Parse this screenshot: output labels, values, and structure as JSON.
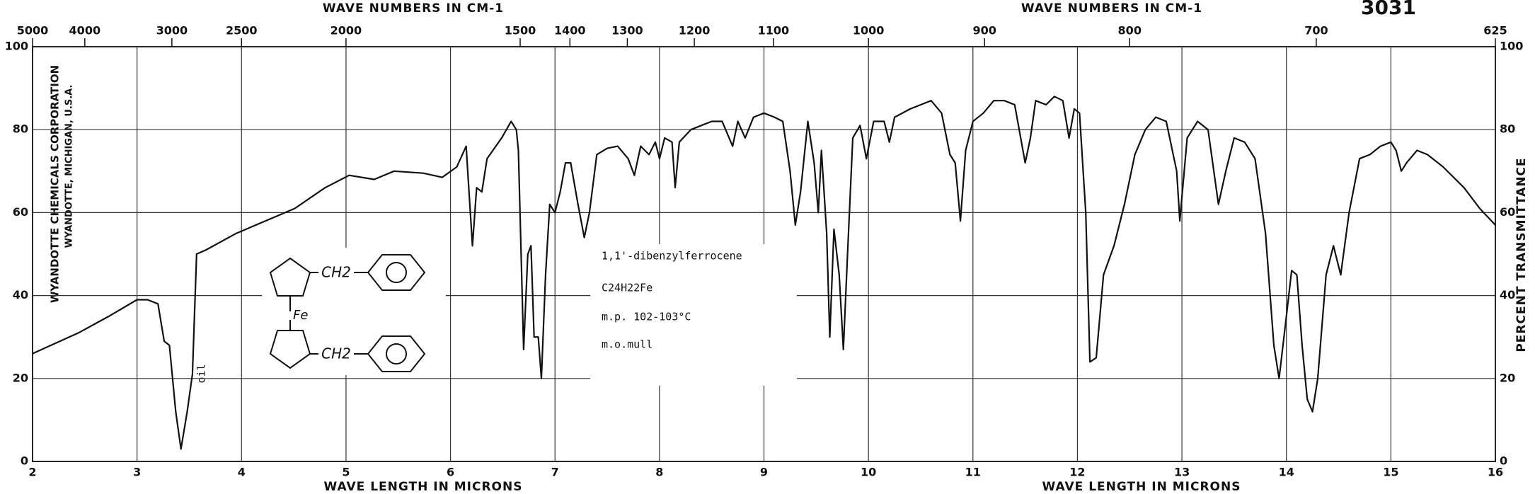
{
  "chart_data": {
    "type": "line",
    "color": "#111111",
    "grid": true,
    "xlim": [
      2,
      16
    ],
    "xticks": [
      2,
      3,
      4,
      5,
      6,
      7,
      8,
      9,
      10,
      11,
      12,
      13,
      14,
      15,
      16
    ],
    "ylim": [
      0,
      100
    ],
    "yticks": [
      0,
      20,
      40,
      60,
      80,
      100
    ],
    "x2scale": "reciprocal",
    "x2ticks": [
      5000,
      4000,
      3000,
      2500,
      2000,
      1500,
      1400,
      1300,
      1200,
      1100,
      1000,
      900,
      800,
      700,
      625
    ],
    "x2label_left": "WAVE NUMBERS IN CM-1",
    "x2label_right": "WAVE NUMBERS IN CM-1",
    "xlabel_left": "WAVE LENGTH IN MICRONS",
    "xlabel_right": "WAVE LENGTH IN MICRONS",
    "y2label": "PERCENT TRANSMITTANCE",
    "spectrum_number": "3031",
    "company": "WYANDOTTE CHEMICALS CORPORATION",
    "location": "WYANDOTTE, MICHIGAN, U.S.A.",
    "annotations": {
      "oil": "oil",
      "name": "1,1'-dibenzylferrocene",
      "formula": "C24H22Fe",
      "mp": "m.p. 102-103°C",
      "method": "m.o.mull",
      "structure_ch2_top": "CH2",
      "structure_ch2_bottom": "CH2",
      "structure_fe": "Fe"
    },
    "x": [
      2.0,
      2.44,
      2.73,
      3.0,
      3.1,
      3.2,
      3.26,
      3.31,
      3.37,
      3.42,
      3.48,
      3.53,
      3.57,
      3.66,
      3.95,
      4.23,
      4.51,
      4.8,
      5.03,
      5.27,
      5.46,
      5.74,
      5.92,
      6.06,
      6.15,
      6.18,
      6.21,
      6.25,
      6.3,
      6.35,
      6.49,
      6.58,
      6.63,
      6.65,
      6.7,
      6.74,
      6.77,
      6.8,
      6.84,
      6.87,
      6.91,
      6.95,
      7.0,
      7.05,
      7.1,
      7.15,
      7.22,
      7.28,
      7.33,
      7.4,
      7.5,
      7.6,
      7.7,
      7.76,
      7.82,
      7.9,
      7.96,
      8.0,
      8.05,
      8.12,
      8.15,
      8.19,
      8.3,
      8.4,
      8.5,
      8.6,
      8.7,
      8.75,
      8.82,
      8.9,
      9.0,
      9.1,
      9.18,
      9.25,
      9.3,
      9.35,
      9.42,
      9.48,
      9.52,
      9.55,
      9.6,
      9.63,
      9.67,
      9.72,
      9.76,
      9.8,
      9.85,
      9.92,
      9.98,
      10.05,
      10.15,
      10.2,
      10.25,
      10.4,
      10.5,
      10.6,
      10.7,
      10.78,
      10.83,
      10.88,
      10.93,
      11.0,
      11.1,
      11.2,
      11.3,
      11.4,
      11.5,
      11.55,
      11.6,
      11.7,
      11.78,
      11.86,
      11.92,
      11.97,
      12.02,
      12.08,
      12.12,
      12.18,
      12.25,
      12.35,
      12.45,
      12.55,
      12.65,
      12.75,
      12.85,
      12.95,
      12.98,
      13.05,
      13.15,
      13.25,
      13.35,
      13.42,
      13.5,
      13.6,
      13.7,
      13.8,
      13.88,
      13.93,
      14.0,
      14.05,
      14.1,
      14.15,
      14.2,
      14.25,
      14.3,
      14.38,
      14.45,
      14.52,
      14.6,
      14.7,
      14.8,
      14.9,
      15.0,
      15.05,
      15.1,
      15.15,
      15.25,
      15.35,
      15.5,
      15.7,
      15.85,
      16.0
    ],
    "values": [
      26,
      31,
      35,
      39,
      39,
      38,
      29,
      28,
      12,
      3,
      12,
      21,
      50,
      51,
      55,
      58,
      61,
      66,
      69,
      68,
      70,
      69.5,
      68.5,
      71,
      76,
      64,
      52,
      66,
      65,
      73,
      78,
      82,
      80,
      75,
      27,
      50,
      52,
      30,
      30,
      20,
      45,
      62,
      60,
      65,
      72,
      72,
      62,
      54,
      60,
      74,
      75.5,
      76,
      73,
      69,
      76,
      74,
      77,
      73,
      78,
      77,
      66,
      77,
      80,
      81,
      82,
      82,
      76,
      82,
      78,
      83,
      84,
      83,
      82,
      70,
      57,
      65,
      82,
      72,
      60,
      75,
      55,
      30,
      56,
      45,
      27,
      50,
      78,
      81,
      73,
      82,
      82,
      77,
      83,
      85,
      86,
      87,
      84,
      74,
      72,
      58,
      75,
      82,
      84,
      87,
      87,
      86,
      72,
      78,
      87,
      86,
      88,
      87,
      78,
      85,
      84,
      60,
      24,
      25,
      45,
      52,
      62,
      74,
      80,
      83,
      82,
      70,
      58,
      78,
      82,
      80,
      62,
      70,
      78,
      77,
      73,
      55,
      28,
      20,
      35,
      46,
      45,
      28,
      15,
      12,
      20,
      45,
      52,
      45,
      60,
      73,
      74,
      76,
      77,
      75,
      70,
      72,
      75,
      74,
      71,
      66,
      61,
      57
    ]
  }
}
